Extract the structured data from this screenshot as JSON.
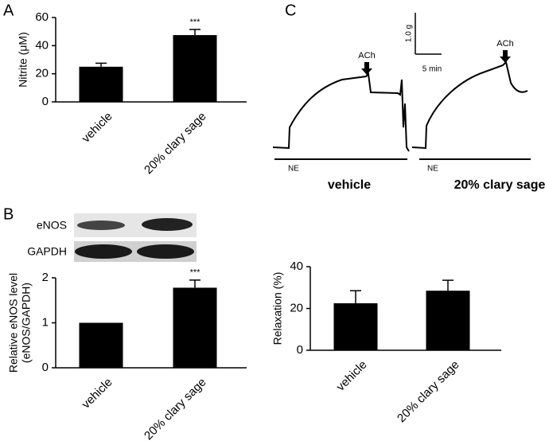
{
  "chart_data": [
    {
      "type": "bar",
      "panel": "A",
      "y_label": [
        "Nitrite (μM)"
      ],
      "categories": [
        "vehicle",
        "20% clary sage"
      ],
      "values": [
        25,
        47.5
      ],
      "errors": [
        2.5,
        4
      ],
      "annotations": [
        null,
        "***"
      ],
      "color": "#000000",
      "ylim": [
        0,
        60
      ],
      "yticks": [
        0,
        20,
        40,
        60
      ]
    },
    {
      "type": "bar",
      "panel": "B",
      "y_label": [
        "Relative eNOS level",
        "(eNOS/GAPDH)"
      ],
      "categories": [
        "vehicle",
        "20% clary sage"
      ],
      "values": [
        1,
        1.78
      ],
      "errors": [
        null,
        0.17
      ],
      "annotations": [
        null,
        "***"
      ],
      "color": "#000000",
      "ylim": [
        0,
        2
      ],
      "yticks": [
        0,
        1,
        2
      ]
    },
    {
      "type": "bar",
      "panel": "C",
      "y_label": [
        "Relaxation (%)"
      ],
      "categories": [
        "vehicle",
        "20% clary sage"
      ],
      "values": [
        22.5,
        28.5
      ],
      "errors": [
        6,
        5
      ],
      "annotations": [
        null,
        null
      ],
      "color": "#000000",
      "ylim": [
        0,
        40
      ],
      "yticks": [
        0,
        20,
        40
      ]
    }
  ],
  "figure": {
    "blot": {
      "rows": [
        "eNOS",
        "GAPDH"
      ]
    },
    "traces": {
      "agonist": "ACh",
      "precontraction": "NE",
      "groups": [
        "vehicle",
        "20% clary sage"
      ],
      "scale_force": "1.0 g",
      "scale_time": "5 min"
    }
  }
}
